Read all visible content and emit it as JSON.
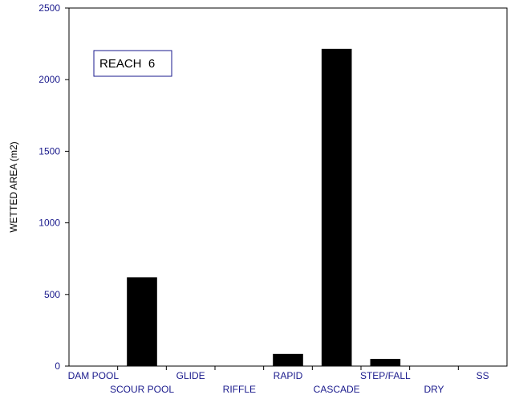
{
  "chart_data": {
    "type": "bar",
    "title": "",
    "annotation": "REACH  6",
    "xlabel": "",
    "ylabel": "WETTED AREA (m2)",
    "categories": [
      "DAM POOL",
      "SCOUR POOL",
      "GLIDE",
      "RIFFLE",
      "RAPID",
      "CASCADE",
      "STEP/FALL",
      "DRY",
      "SS"
    ],
    "values": [
      0,
      620,
      0,
      0,
      85,
      2215,
      50,
      0,
      0
    ],
    "ylim": [
      0,
      2500
    ],
    "yticks": [
      0,
      500,
      1000,
      1500,
      2000,
      2500
    ],
    "grid": false,
    "bar_color": "#000000",
    "tick_label_color": "#1a1a8c"
  }
}
